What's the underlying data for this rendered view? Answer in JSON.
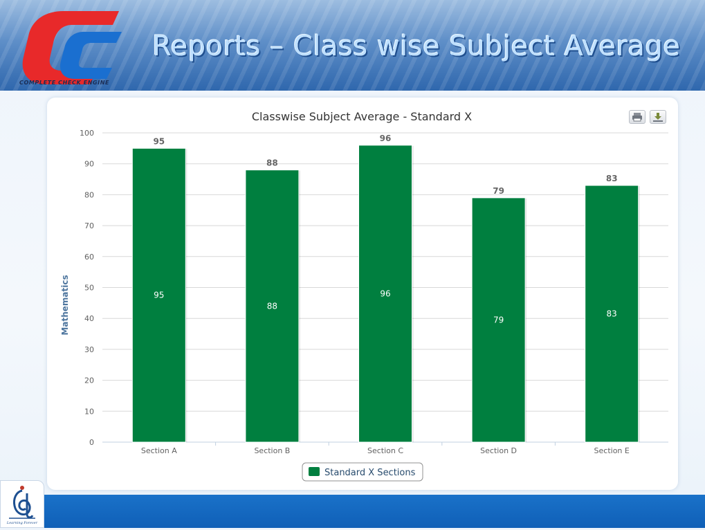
{
  "slide": {
    "title": "Reports – Class wise Subject Average",
    "logo_tagline": "COMPLETE CHECK ENGINE",
    "footer_logo_caption": "Learning Forever"
  },
  "toolbar": {
    "print_icon": "printer-icon",
    "download_icon": "download-icon"
  },
  "colors": {
    "bar": "#007f3f",
    "title": "#333333",
    "axis_label": "#4d759e",
    "banner": "#3a72b5",
    "footer": "#1568c0"
  },
  "chart_data": {
    "type": "bar",
    "title": "Classwise Subject Average - Standard X",
    "ylabel": "Mathematics",
    "xlabel": "",
    "categories": [
      "Section A",
      "Section B",
      "Section C",
      "Section D",
      "Section E"
    ],
    "series": [
      {
        "name": "Standard X Sections",
        "values": [
          95,
          88,
          96,
          79,
          83
        ]
      }
    ],
    "ylim": [
      0,
      100
    ],
    "yticks": [
      0,
      10,
      20,
      30,
      40,
      50,
      60,
      70,
      80,
      90,
      100
    ],
    "grid": true,
    "legend": "bottom-center",
    "data_labels": "above-and-inside"
  }
}
